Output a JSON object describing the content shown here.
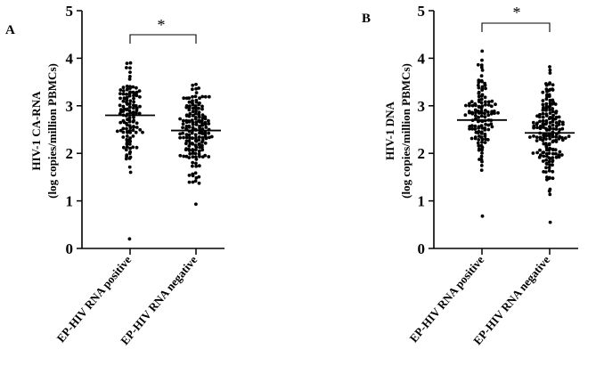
{
  "chart_data": [
    {
      "panel_label": "A",
      "type": "scatter",
      "ylabel_line1": "HIV-1 CA-RNA",
      "ylabel_line2": "(log copies/million PBMCs)",
      "ylim": [
        0,
        5
      ],
      "yticks": [
        "0",
        "1",
        "2",
        "3",
        "4",
        "5"
      ],
      "categories": [
        "EP-HIV RNA positive",
        "EP-HIV RNA negative"
      ],
      "medians": [
        2.8,
        2.48
      ],
      "significance": "*",
      "series": [
        {
          "category": "EP-HIV RNA positive",
          "y_range": [
            0.2,
            3.9
          ],
          "count": 125,
          "median": 2.8
        },
        {
          "category": "EP-HIV RNA negative",
          "y_range": [
            0.93,
            3.45
          ],
          "count": 175,
          "median": 2.48
        }
      ]
    },
    {
      "panel_label": "B",
      "type": "scatter",
      "ylabel_line1": "HIV-1 DNA",
      "ylabel_line2": "(log copies/million PBMCs)",
      "ylim": [
        0,
        5
      ],
      "yticks": [
        "0",
        "1",
        "2",
        "3",
        "4",
        "5"
      ],
      "categories": [
        "EP-HIV RNA positive",
        "EP-HIV RNA negative"
      ],
      "medians": [
        2.7,
        2.43
      ],
      "significance": "*",
      "series": [
        {
          "category": "EP-HIV RNA positive",
          "y_range": [
            0.68,
            4.15
          ],
          "count": 130,
          "median": 2.7
        },
        {
          "category": "EP-HIV RNA negative",
          "y_range": [
            0.55,
            3.82
          ],
          "count": 180,
          "median": 2.43
        }
      ]
    }
  ]
}
